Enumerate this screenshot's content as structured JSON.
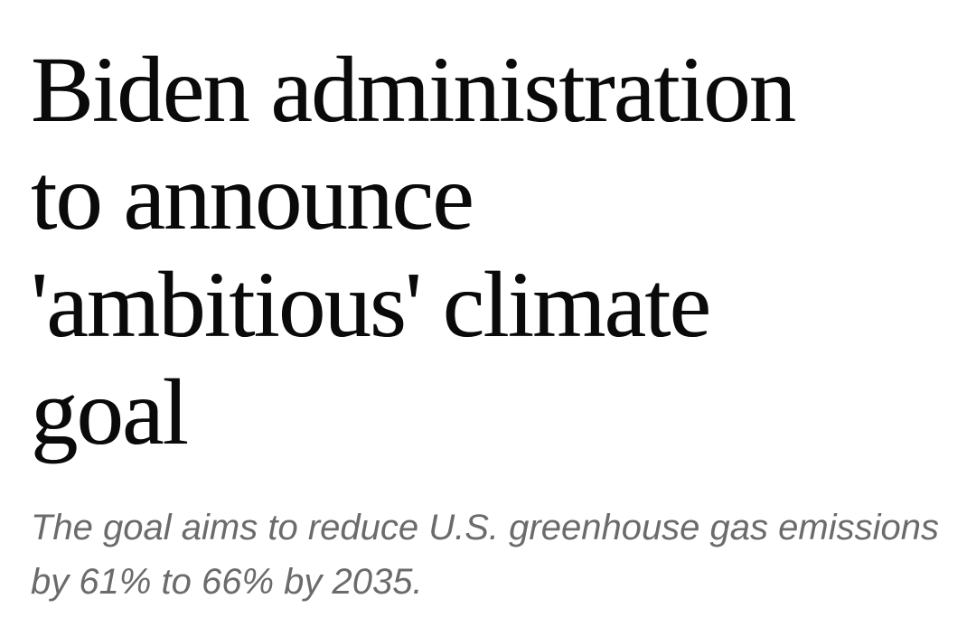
{
  "article": {
    "headline_lines": [
      "Biden administration",
      "to announce",
      "'ambitious' climate",
      "goal"
    ],
    "subheadline": "The goal aims to reduce U.S. greenhouse gas emissions by 61% to 66% by 2035."
  },
  "colors": {
    "background": "#ffffff",
    "headline": "#0a0a0a",
    "subheadline": "#6b6b6b"
  }
}
